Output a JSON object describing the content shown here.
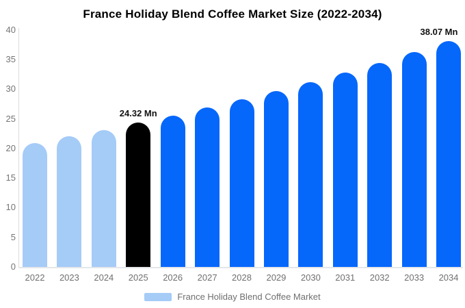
{
  "chart_data": {
    "type": "bar",
    "title": "France Holiday Blend Coffee Market Size (2022-2034)",
    "categories": [
      "2022",
      "2023",
      "2024",
      "2025",
      "2026",
      "2027",
      "2028",
      "2029",
      "2030",
      "2031",
      "2032",
      "2033",
      "2034"
    ],
    "values": [
      20.95,
      22.02,
      23.14,
      24.32,
      25.56,
      26.87,
      28.24,
      29.68,
      31.19,
      32.78,
      34.45,
      36.21,
      38.07
    ],
    "value_unit": "Mn",
    "bar_colors": [
      "#A5CBF7",
      "#A5CBF7",
      "#A5CBF7",
      "#000000",
      "#0667FB",
      "#0667FB",
      "#0667FB",
      "#0667FB",
      "#0667FB",
      "#0667FB",
      "#0667FB",
      "#0667FB",
      "#0667FB"
    ],
    "data_labels": [
      {
        "category": "2025",
        "text": "24.32 Mn"
      },
      {
        "category": "2034",
        "text": "38.07 Mn"
      }
    ],
    "xlabel": "",
    "ylabel": "",
    "ylim": [
      0,
      40
    ],
    "yticks": [
      0,
      5,
      10,
      15,
      20,
      25,
      30,
      35,
      40
    ],
    "grid": false,
    "legend": {
      "position": "bottom",
      "items": [
        {
          "label": "France Holiday Blend Coffee Market",
          "color": "#A5CBF7"
        }
      ]
    }
  },
  "colors": {
    "background": "#ffffff",
    "axis_line": "#dcdcdc",
    "baseline": "#e4e7ea",
    "tick_text": "#757575",
    "x_label_text": "#6f6f6f",
    "legend_text": "#6f6f6f",
    "title_text": "#000000",
    "value_label_text": "#111111",
    "historical_bar": "#A5CBF7",
    "base_year_bar": "#000000",
    "forecast_bar": "#0667FB"
  }
}
